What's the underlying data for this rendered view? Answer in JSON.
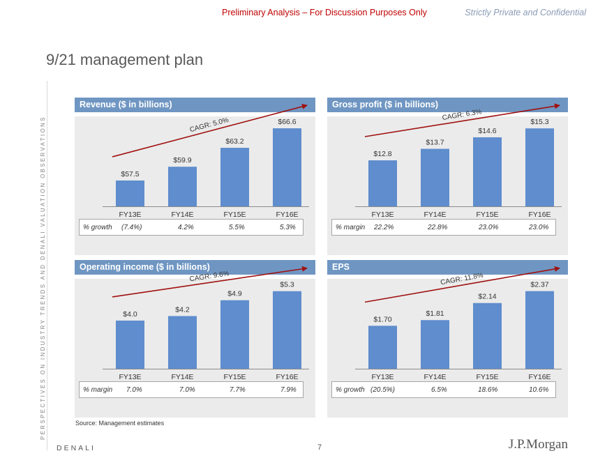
{
  "header": {
    "prelim": "Preliminary Analysis – For Discussion Purposes Only",
    "confidential": "Strictly Private and Confidential"
  },
  "title": "9/21 management plan",
  "side_text": "PERSPECTIVES ON INDUSTRY TRENDS AND DENALI VALUATION OBSERVATIONS",
  "colors": {
    "bar": "#5f8dcd",
    "header": "#6f96c2",
    "arrow": "#a01010",
    "panel": "#ebebeb"
  },
  "chart_data": [
    {
      "type": "bar",
      "title": "Revenue ($ in billions)",
      "categories": [
        "FY13E",
        "FY14E",
        "FY15E",
        "FY16E"
      ],
      "values": [
        57.5,
        59.9,
        63.2,
        66.6
      ],
      "labels": [
        "$57.5",
        "$59.9",
        "$63.2",
        "$66.6"
      ],
      "ylim": [
        53,
        67.7
      ],
      "cagr": "CAGR: 5.0%",
      "metric": {
        "label": "% growth",
        "values": [
          "(7.4%)",
          "4.2%",
          "5.5%",
          "5.3%"
        ]
      }
    },
    {
      "type": "bar",
      "title": "Gross profit ($ in billions)",
      "categories": [
        "FY13E",
        "FY14E",
        "FY15E",
        "FY16E"
      ],
      "values": [
        12.8,
        13.7,
        14.6,
        15.3
      ],
      "labels": [
        "$12.8",
        "$13.7",
        "$14.6",
        "$15.3"
      ],
      "ylim": [
        9.2,
        15.8
      ],
      "cagr": "CAGR: 6.3%",
      "metric": {
        "label": "% margin",
        "values": [
          "22.2%",
          "22.8%",
          "23.0%",
          "23.0%"
        ]
      }
    },
    {
      "type": "bar",
      "title": "Operating income ($ in billions)",
      "categories": [
        "FY13E",
        "FY14E",
        "FY15E",
        "FY16E"
      ],
      "values": [
        4.0,
        4.2,
        4.9,
        5.3
      ],
      "labels": [
        "$4.0",
        "$4.2",
        "$4.9",
        "$5.3"
      ],
      "ylim": [
        1.87,
        5.6
      ],
      "cagr": "CAGR: 9.6%",
      "metric": {
        "label": "% margin",
        "values": [
          "7.0%",
          "7.0%",
          "7.7%",
          "7.9%"
        ]
      }
    },
    {
      "type": "bar",
      "title": "EPS",
      "categories": [
        "FY13E",
        "FY14E",
        "FY15E",
        "FY16E"
      ],
      "values": [
        1.7,
        1.81,
        2.14,
        2.37
      ],
      "labels": [
        "$1.70",
        "$1.81",
        "$2.14",
        "$2.37"
      ],
      "ylim": [
        0.87,
        2.5
      ],
      "cagr": "CAGR: 11.8%",
      "metric": {
        "label": "% growth",
        "values": [
          "(20.5%)",
          "6.5%",
          "18.6%",
          "10.6%"
        ]
      }
    }
  ],
  "source": "Source: Management estimates",
  "footer": {
    "company": "DENALI",
    "page": "7",
    "logo": "J.P.Morgan"
  }
}
